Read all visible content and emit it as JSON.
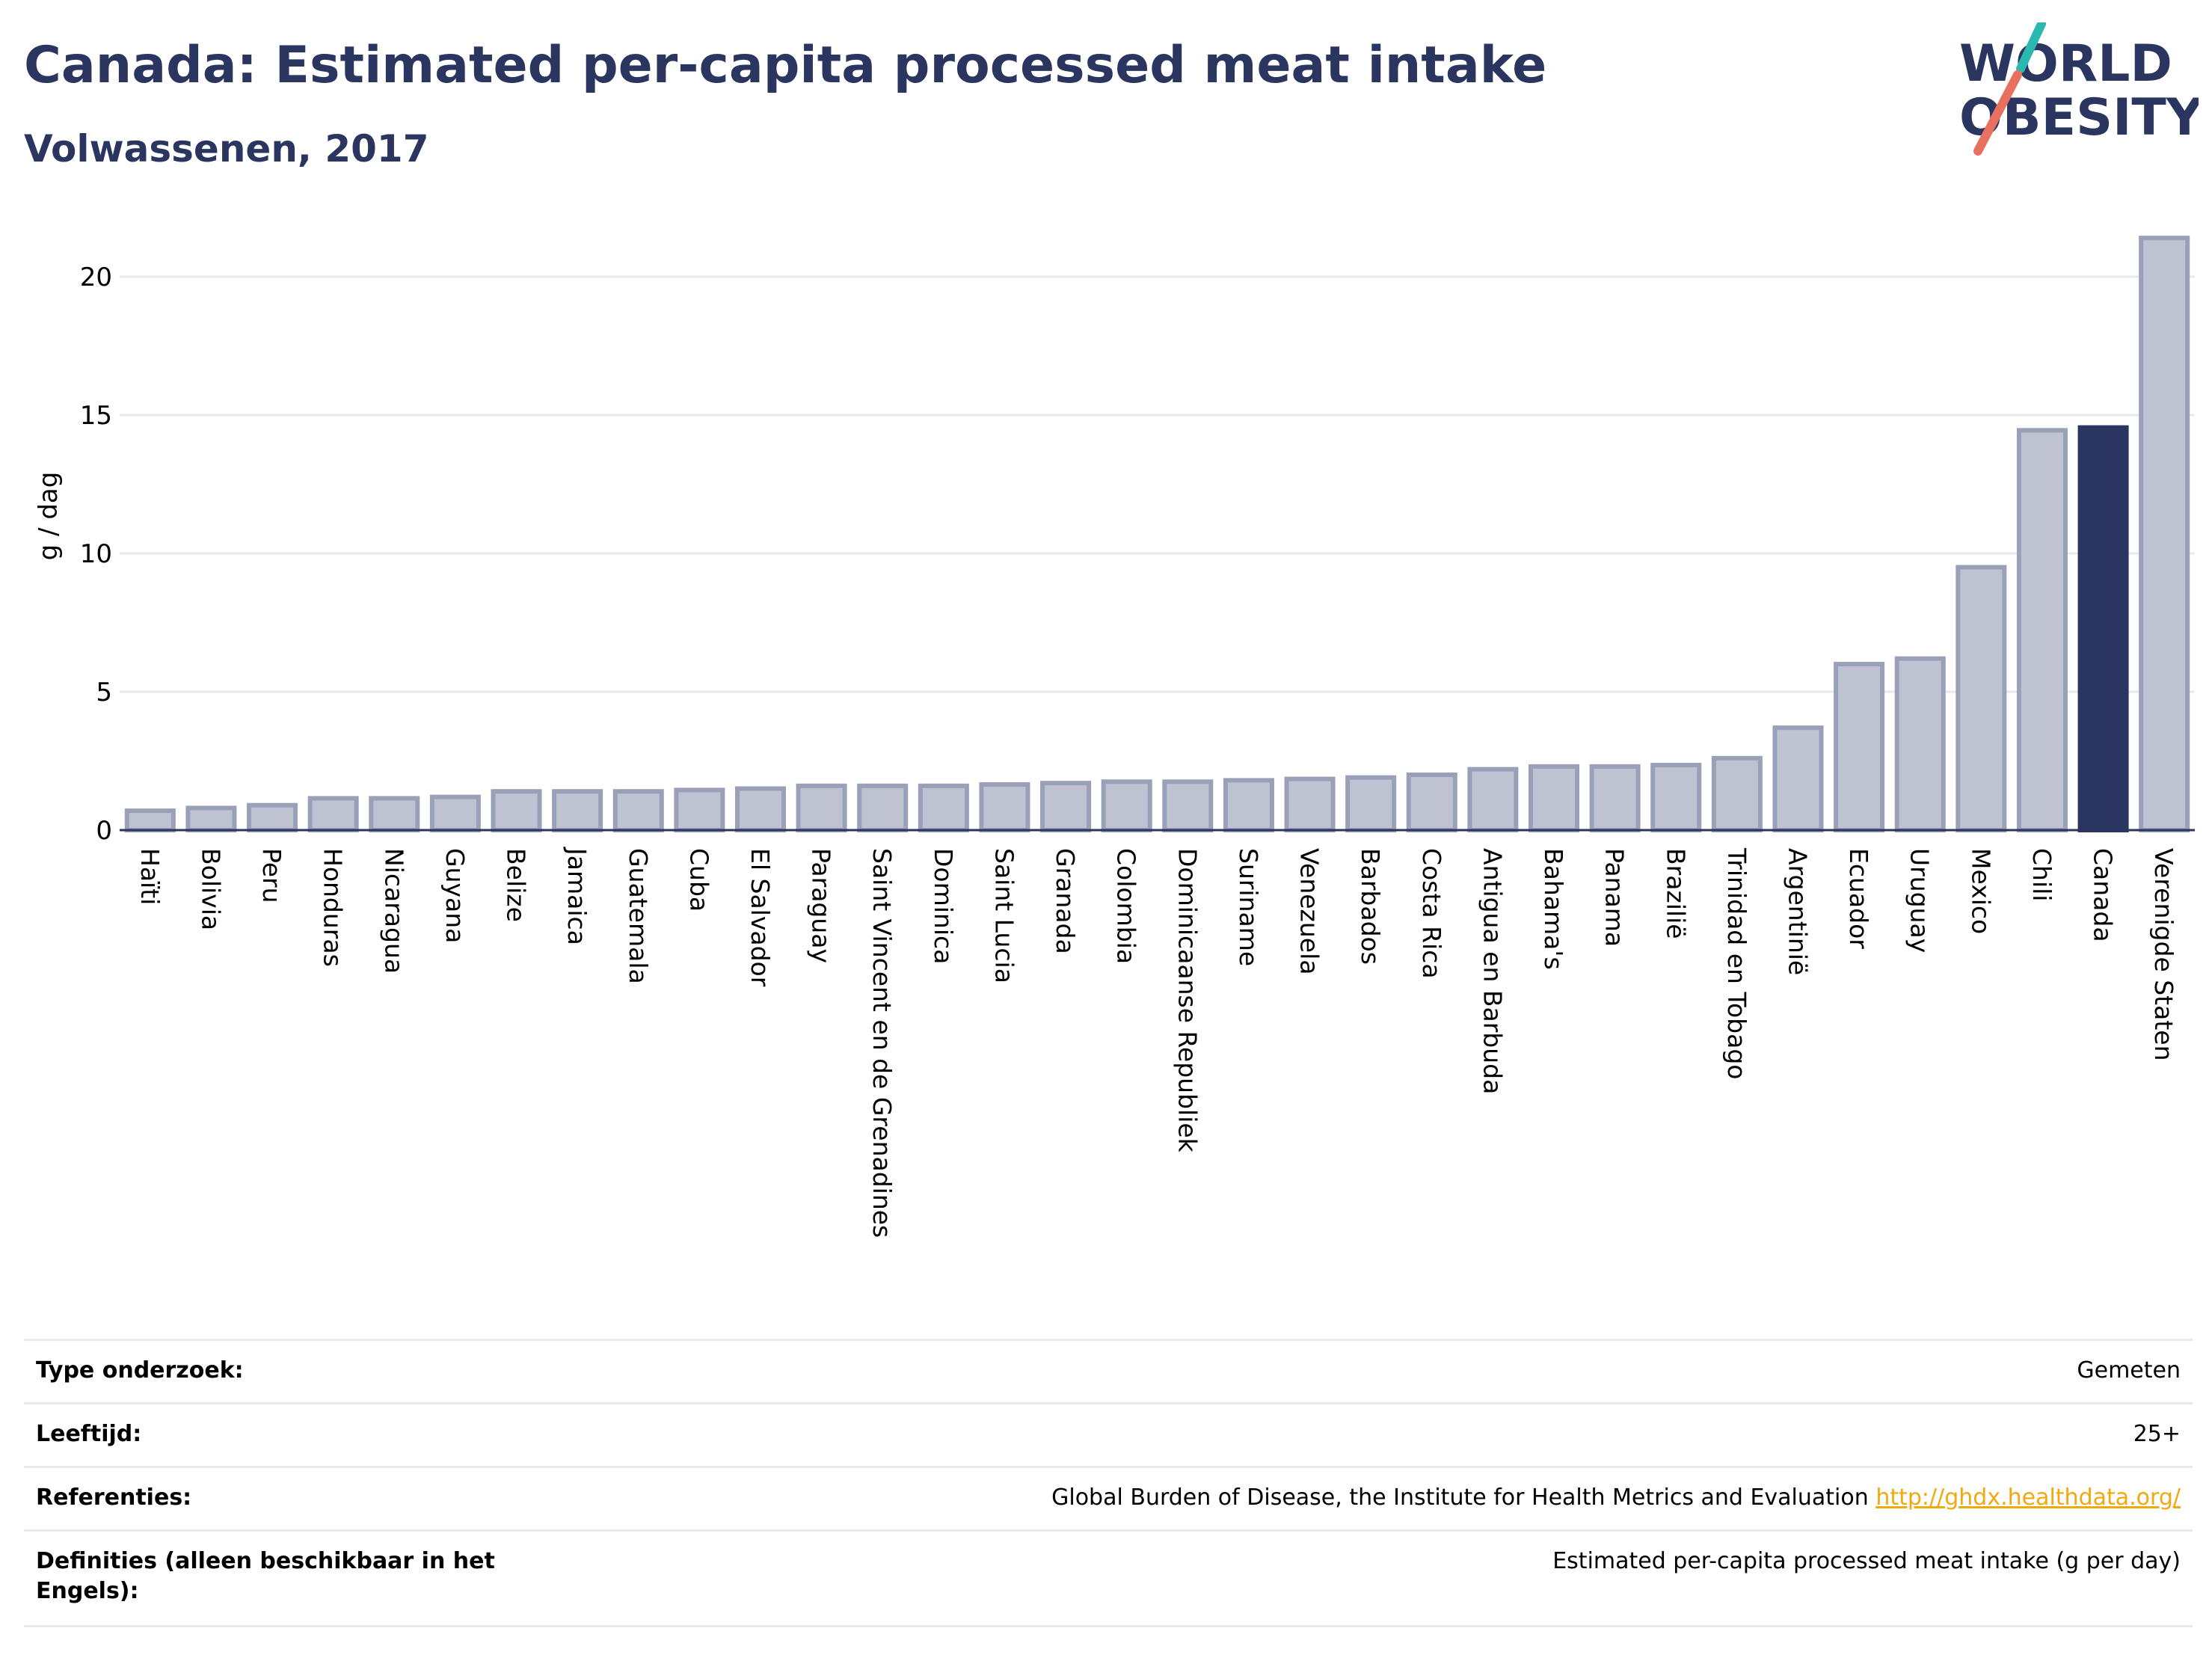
{
  "title": "Canada: Estimated per-capita processed meat intake",
  "subtitle": "Volwassenen, 2017",
  "logo": {
    "line1": "WORLD",
    "line2": "OBESITY"
  },
  "colors": {
    "bar": "#bfc3d1",
    "bar_edge": "#9aa0b8",
    "highlight": "#2b3660",
    "title": "#2b3660",
    "link": "#f0a90f"
  },
  "chart_data": {
    "type": "bar",
    "ylabel": "g / dag",
    "xlabel": "",
    "ylim": [
      0,
      22
    ],
    "yticks": [
      0,
      5,
      10,
      15,
      20
    ],
    "grid": true,
    "highlight": "Canada",
    "categories": [
      "Haïti",
      "Bolivia",
      "Peru",
      "Honduras",
      "Nicaragua",
      "Guyana",
      "Belize",
      "Jamaica",
      "Guatemala",
      "Cuba",
      "El Salvador",
      "Paraguay",
      "Saint Vincent en de Grenadines",
      "Dominica",
      "Saint Lucia",
      "Granada",
      "Colombia",
      "Dominicaanse Republiek",
      "Suriname",
      "Venezuela",
      "Barbados",
      "Costa Rica",
      "Antigua en Barbuda",
      "Bahama's",
      "Panama",
      "Brazilië",
      "Trinidad en Tobago",
      "Argentinië",
      "Ecuador",
      "Uruguay",
      "Mexico",
      "Chili",
      "Canada",
      "Verenigde Staten"
    ],
    "values": [
      0.7,
      0.8,
      0.9,
      1.15,
      1.15,
      1.2,
      1.4,
      1.4,
      1.4,
      1.45,
      1.5,
      1.6,
      1.6,
      1.6,
      1.65,
      1.7,
      1.75,
      1.75,
      1.8,
      1.85,
      1.9,
      2.0,
      2.2,
      2.3,
      2.3,
      2.35,
      2.6,
      3.7,
      6.0,
      6.2,
      9.5,
      14.45,
      14.55,
      21.4
    ]
  },
  "info": [
    {
      "label": "Type onderzoek:",
      "value": "Gemeten"
    },
    {
      "label": "Leeftijd:",
      "value": "25+"
    },
    {
      "label": "Referenties:",
      "value": "Global Burden of Disease, the Institute for Health Metrics and Evaluation",
      "link": "http://ghdx.healthdata.org/"
    },
    {
      "label": "Definities (alleen beschikbaar in het Engels):",
      "value": "Estimated per-capita processed meat intake (g per day)"
    }
  ]
}
